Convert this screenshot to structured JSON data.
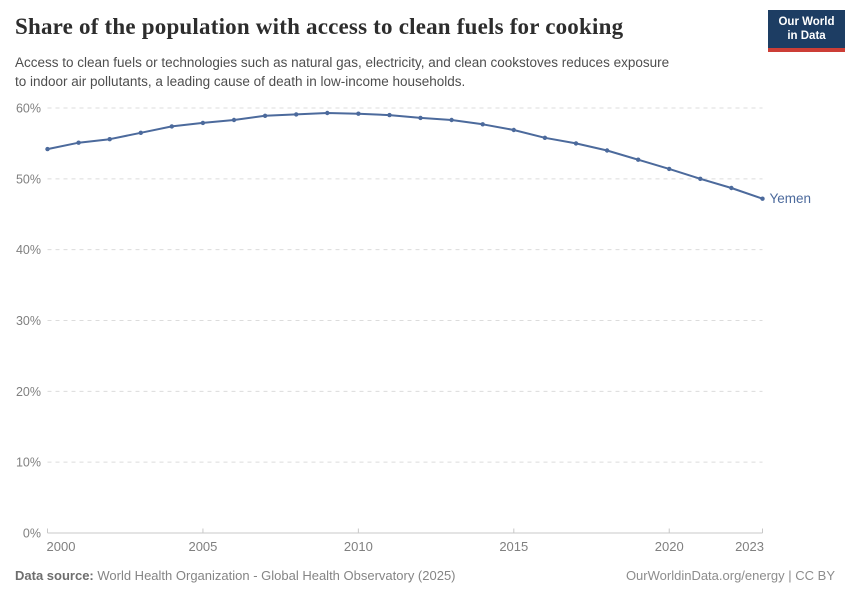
{
  "header": {
    "title": "Share of the population with access to clean fuels for cooking",
    "subtitle_line1": "Access to clean fuels or technologies such as natural gas, electricity, and clean cookstoves reduces exposure",
    "subtitle_line2": "to indoor air pollutants, a leading cause of death in low-income households.",
    "logo": {
      "line1": "Our World",
      "line2": "in Data",
      "bg_color": "#1d3d63",
      "stripe_color": "#cc3e36"
    }
  },
  "chart_data": {
    "type": "line",
    "title": "Share of the population with access to clean fuels for cooking",
    "xlabel": "",
    "ylabel": "",
    "x": [
      2000,
      2001,
      2002,
      2003,
      2004,
      2005,
      2006,
      2007,
      2008,
      2009,
      2010,
      2011,
      2012,
      2013,
      2014,
      2015,
      2016,
      2017,
      2018,
      2019,
      2020,
      2021,
      2022,
      2023
    ],
    "series": [
      {
        "name": "Yemen",
        "color": "#4C6A9C",
        "values": [
          54.2,
          55.1,
          55.6,
          56.5,
          57.4,
          57.9,
          58.3,
          58.9,
          59.1,
          59.3,
          59.2,
          59.0,
          58.6,
          58.3,
          57.7,
          56.9,
          55.8,
          55.0,
          54.0,
          52.7,
          51.4,
          50.0,
          48.7,
          47.2
        ]
      }
    ],
    "ylim": [
      0,
      60
    ],
    "ytick_step": 10,
    "ytick_suffix": "%",
    "xticks": [
      2000,
      2005,
      2010,
      2015,
      2020,
      2023
    ],
    "grid": true,
    "grid_color": "#dcdcdc",
    "axis_color": "#c8c8c8",
    "tick_label_color": "#808080",
    "entity_label": "Yemen",
    "legend_position": "end-of-line"
  },
  "footer": {
    "source_label": "Data source:",
    "source_text": " World Health Organization - Global Health Observatory (2025)",
    "credit": "OurWorldinData.org/energy | CC BY"
  }
}
